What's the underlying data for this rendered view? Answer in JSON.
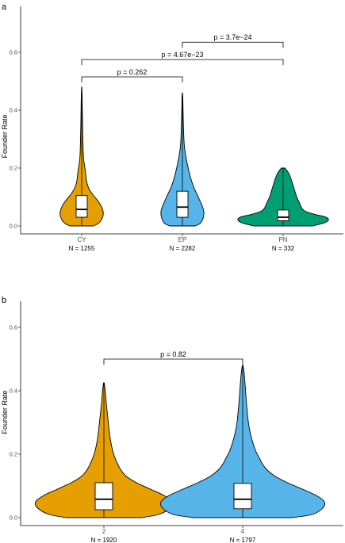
{
  "chart_data": [
    {
      "type": "violin",
      "panel_label": "a",
      "ylabel": "Founder Rate",
      "ylim": [
        0,
        0.7
      ],
      "yticks": [
        "0.0",
        "0.2",
        "0.4",
        "0.6"
      ],
      "categories": [
        "CY",
        "EP",
        "PN"
      ],
      "n_labels": [
        "N = 1255",
        "N = 2282",
        "N = 332"
      ],
      "colors": [
        "#E69F00",
        "#56B4E9",
        "#009E73"
      ],
      "box_stats": [
        {
          "min": 0.0,
          "q1": 0.03,
          "median": 0.057,
          "q3": 0.105,
          "max": 0.48
        },
        {
          "min": 0.0,
          "q1": 0.03,
          "median": 0.065,
          "q3": 0.12,
          "max": 0.46
        },
        {
          "min": 0.0,
          "q1": 0.018,
          "median": 0.03,
          "q3": 0.055,
          "max": 0.2
        }
      ],
      "comparisons": [
        {
          "from": 0,
          "to": 1,
          "label": "p = 0.262",
          "y": 0.515
        },
        {
          "from": 0,
          "to": 2,
          "label": "p = 4.67e−23",
          "y": 0.575
        },
        {
          "from": 1,
          "to": 2,
          "label": "p = 3.7e−24",
          "y": 0.635
        }
      ]
    },
    {
      "type": "violin",
      "panel_label": "b",
      "ylabel": "Founder Rate",
      "ylim": [
        0,
        0.7
      ],
      "yticks": [
        "0.0",
        "0.2",
        "0.4",
        "0.6"
      ],
      "categories": [
        "2",
        "4"
      ],
      "n_labels": [
        "N = 1920",
        "N = 1797"
      ],
      "colors": [
        "#E69F00",
        "#56B4E9"
      ],
      "box_stats": [
        {
          "min": 0.0,
          "q1": 0.025,
          "median": 0.058,
          "q3": 0.11,
          "max": 0.425
        },
        {
          "min": 0.0,
          "q1": 0.028,
          "median": 0.058,
          "q3": 0.108,
          "max": 0.48
        }
      ],
      "comparisons": [
        {
          "from": 0,
          "to": 1,
          "label": "p = 0.82",
          "y": 0.5
        }
      ]
    }
  ]
}
